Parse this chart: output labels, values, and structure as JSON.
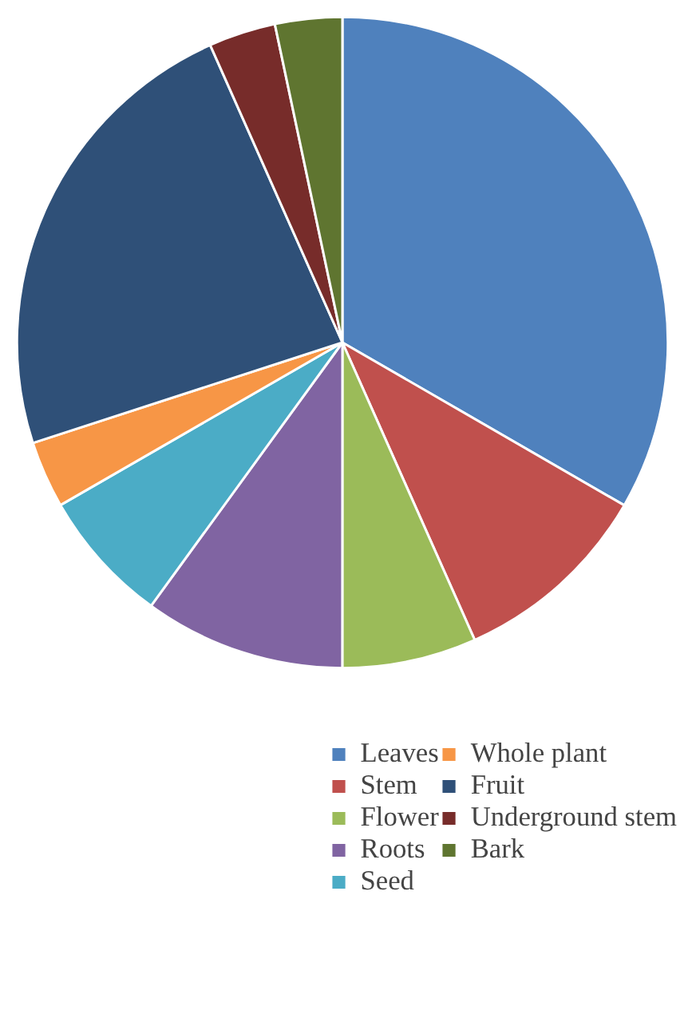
{
  "chart_data": {
    "type": "pie",
    "categories": [
      "Leaves",
      "Stem",
      "Flower",
      "Roots",
      "Seed",
      "Whole plant",
      "Fruit",
      "Underground stem",
      "Bark"
    ],
    "values": [
      33.33,
      10,
      6.67,
      10,
      6.67,
      3.33,
      23.33,
      3.33,
      3.33
    ],
    "colors": [
      "#4f81bd",
      "#c0504d",
      "#9bbb59",
      "#8064a2",
      "#4bacc6",
      "#f79646",
      "#2f5078",
      "#772c2a",
      "#5f7530"
    ],
    "legend": "bottom"
  }
}
